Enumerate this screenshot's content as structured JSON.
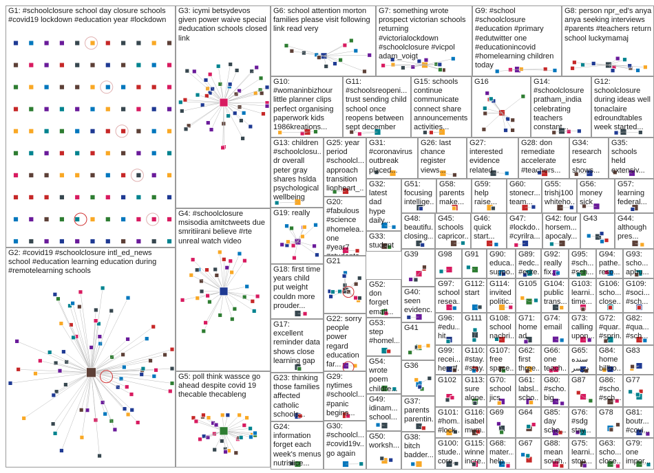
{
  "title": "",
  "groups": [
    {
      "id": "G1",
      "text": "G1: #schoolclosure school day closure schools #covid19 lockdown #education year #lockdown"
    },
    {
      "id": "G2",
      "text": "G2: #covid19 #schoolclosure intl_ed_news school #education learning education during #remotelearning schools"
    },
    {
      "id": "G3",
      "text": "G3: icymi betsydevos given power waive special #education schools closed link"
    },
    {
      "id": "G4",
      "text": "G4: #schoolclosure msisodia amitctweets due smritiirani believe #rte unreal watch video"
    },
    {
      "id": "G5",
      "text": "G5: poll think wassce go ahead despite covid 19 thecable thecableng"
    },
    {
      "id": "G6",
      "text": "G6: school attention morton families please visit following link read very"
    },
    {
      "id": "G7",
      "text": "G7: something wrote prospect victorian schools returning #victorialockdown #schoolclosure #vicpol adam_voigt"
    },
    {
      "id": "G9",
      "text": "G9: #school #schoolclosure #education #primary #edutwitter one #educationincovid #homelearning children today"
    },
    {
      "id": "G8",
      "text": "G8: person npr_ed's anya anya seeking interviews #parents #teachers return school luckymamaj"
    },
    {
      "id": "G10",
      "text": "G10: #womaninbizhour little planner clips perfect organising paperwork kids 1986kreations..."
    },
    {
      "id": "G11",
      "text": "G11: #schoolsreopeni... trust sending child school once reopens between sept december"
    },
    {
      "id": "G15",
      "text": "G15: schools continue communicate connect share announcements activities..."
    },
    {
      "id": "G16",
      "text": "G16"
    },
    {
      "id": "G14",
      "text": "G14: #schoolclosure pratham_india celebrating teachers constant..."
    },
    {
      "id": "G12",
      "text": "G12: schoolclosure during ideas well tonaclaire edroundtables week started..."
    },
    {
      "id": "G13",
      "text": "G13: children #schoolclosu... dr overall peter gray shares hslda psychological wellbeing"
    },
    {
      "id": "G25",
      "text": "G25: year period #schoolcl... approach transition lionheart_..."
    },
    {
      "id": "G31",
      "text": "G31: #coronavirus outbreak placed..."
    },
    {
      "id": "G26",
      "text": "G26: last chance register views..."
    },
    {
      "id": "G27",
      "text": "G27: interested evidence related..."
    },
    {
      "id": "G28",
      "text": "G28: don remediate accelerate #teachers..."
    },
    {
      "id": "G34",
      "text": "G34: research esrc shows..."
    },
    {
      "id": "G35",
      "text": "G35: schools held extensiv..."
    },
    {
      "id": "G32",
      "text": "G32: latest dad hype daily..."
    },
    {
      "id": "G51",
      "text": "G51: focusing intellige..."
    },
    {
      "id": "G58",
      "text": "G58: parents make..."
    },
    {
      "id": "G59",
      "text": "G59: help raise..."
    },
    {
      "id": "G60",
      "text": "G60: stonecr... team..."
    },
    {
      "id": "G55",
      "text": "G55: trishj100 whiteho..."
    },
    {
      "id": "G56",
      "text": "G56: money sick"
    },
    {
      "id": "G57",
      "text": "G57: learning federal..."
    },
    {
      "id": "G20",
      "text": "G20: #fabulous #science #homelea... one #year7 #students..."
    },
    {
      "id": "G19",
      "text": "G19: really"
    },
    {
      "id": "G48",
      "text": "G48: beautifu... closing..."
    },
    {
      "id": "G45",
      "text": "G45: schools capricor..."
    },
    {
      "id": "G46",
      "text": "G46: quick start..."
    },
    {
      "id": "G47",
      "text": "G47: #lockdo... #cyrilra..."
    },
    {
      "id": "G42",
      "text": "G42: four horsem... apocaly..."
    },
    {
      "id": "G43",
      "text": "G43"
    },
    {
      "id": "G44",
      "text": "G44: although pres..."
    },
    {
      "id": "G33",
      "text": "G33: student school"
    },
    {
      "id": "G39",
      "text": "G39"
    },
    {
      "id": "G98",
      "text": "G98"
    },
    {
      "id": "G91",
      "text": "G91"
    },
    {
      "id": "G90",
      "text": "G90: educa... suppo..."
    },
    {
      "id": "G89",
      "text": "G89: #edc... #edte..."
    },
    {
      "id": "G92",
      "text": "G92: really fix..."
    },
    {
      "id": "G95",
      "text": "G95: #sch... #sch..."
    },
    {
      "id": "G94",
      "text": "G94: pathe... reso..."
    },
    {
      "id": "G93",
      "text": "G93: scho... aphu..."
    },
    {
      "id": "G18",
      "text": "G18: first time years child put weight couldn more prouder..."
    },
    {
      "id": "G21",
      "text": "G21"
    },
    {
      "id": "G52",
      "text": "G52: don forget email..."
    },
    {
      "id": "G40",
      "text": "G40: seen evidenc..."
    },
    {
      "id": "G97",
      "text": "G97: school resea..."
    },
    {
      "id": "G112",
      "text": "G112: start"
    },
    {
      "id": "G114",
      "text": "G114: invited politic..."
    },
    {
      "id": "G105",
      "text": "G105"
    },
    {
      "id": "G104",
      "text": "G104: public trans..."
    },
    {
      "id": "G103",
      "text": "G103: learni... time..."
    },
    {
      "id": "G106",
      "text": "G106: scho... close..."
    },
    {
      "id": "G109",
      "text": "G109: #soci... #sch..."
    },
    {
      "id": "G17",
      "text": "G17: excellent reminder data shows close learning gap"
    },
    {
      "id": "G22",
      "text": "G22: sorry people power regard education far..."
    },
    {
      "id": "G53",
      "text": "G53: step #homel..."
    },
    {
      "id": "G41",
      "text": "G41"
    },
    {
      "id": "G96",
      "text": "G96: #edu... hit..."
    },
    {
      "id": "G111",
      "text": "G111"
    },
    {
      "id": "G108",
      "text": "G108: school nachri..."
    },
    {
      "id": "G71",
      "text": "G71: home ad"
    },
    {
      "id": "G74",
      "text": "G74: email"
    },
    {
      "id": "G73",
      "text": "G73: calling upon..."
    },
    {
      "id": "G72",
      "text": "G72: #quar... #sprin..."
    },
    {
      "id": "G82",
      "text": "G82: #qua... #sch..."
    },
    {
      "id": "G99",
      "text": "G99: recei... heartf..."
    },
    {
      "id": "G110",
      "text": "G110: #stay... #stay..."
    },
    {
      "id": "G107",
      "text": "G107: free space..."
    },
    {
      "id": "G62",
      "text": "G62: first three..."
    },
    {
      "id": "G66",
      "text": "G66: one teach..."
    },
    {
      "id": "G65",
      "text": "G65: سنده دوسر"
    },
    {
      "id": "G84",
      "text": "G84: home billbo..."
    },
    {
      "id": "G83",
      "text": "G83"
    },
    {
      "id": "G23",
      "text": "G23: thinking those families affected catholic schools..."
    },
    {
      "id": "G29",
      "text": "G29: nytimes #schoolcl... #panic begins..."
    },
    {
      "id": "G54",
      "text": "G54: wrote poem childre..."
    },
    {
      "id": "G36",
      "text": "G36"
    },
    {
      "id": "G102",
      "text": "G102"
    },
    {
      "id": "G113",
      "text": "G113: sure alone..."
    },
    {
      "id": "G70",
      "text": "G70: school jics"
    },
    {
      "id": "G61",
      "text": "G61: labsl... scho..."
    },
    {
      "id": "G80",
      "text": "G80: #scho... big..."
    },
    {
      "id": "G87",
      "text": "G87"
    },
    {
      "id": "G86",
      "text": "G86: #scho... #sch..."
    },
    {
      "id": "G77",
      "text": "G77"
    },
    {
      "id": "G49",
      "text": "G49: idinam... school..."
    },
    {
      "id": "G37",
      "text": "G37: parents parentin..."
    },
    {
      "id": "G24",
      "text": "G24: information forget each week's menus nutrislice..."
    },
    {
      "id": "G30",
      "text": "G30: #schoolcl... #covid19v... go again"
    },
    {
      "id": "G50",
      "text": "G50: worksh..."
    },
    {
      "id": "G38",
      "text": "G38: bitch badder..."
    },
    {
      "id": "G101",
      "text": "G101: #hom... #lock..."
    },
    {
      "id": "G116",
      "text": "G116: isabel mum..."
    },
    {
      "id": "G69",
      "text": "G69"
    },
    {
      "id": "G64",
      "text": "G64"
    },
    {
      "id": "G85",
      "text": "G85: day scho..."
    },
    {
      "id": "G76",
      "text": "G76: #sdg stay..."
    },
    {
      "id": "G78",
      "text": "G78"
    },
    {
      "id": "G81",
      "text": "G81: boutr... #covi..."
    },
    {
      "id": "G100",
      "text": "G100: stude... core..."
    },
    {
      "id": "G115",
      "text": "G115: winner incre..."
    },
    {
      "id": "G68",
      "text": "G68: mater... help..."
    },
    {
      "id": "G67",
      "text": "G67"
    },
    {
      "id": "G88",
      "text": "G88: mean south..."
    },
    {
      "id": "G75",
      "text": "G75: learni... stop..."
    },
    {
      "id": "G63",
      "text": "G63: scho... close..."
    },
    {
      "id": "G79",
      "text": "G79: one impor..."
    }
  ],
  "colors": {
    "border": "#9a9a9a",
    "edge": "#b8b8b8",
    "edge_red": "#d03030",
    "node_palette": [
      "#1f3a93",
      "#2e7d32",
      "#6a1b9a",
      "#c62828",
      "#00838f",
      "#f9a825",
      "#5d4037",
      "#37474f",
      "#d81b60",
      "#0277bd"
    ]
  }
}
